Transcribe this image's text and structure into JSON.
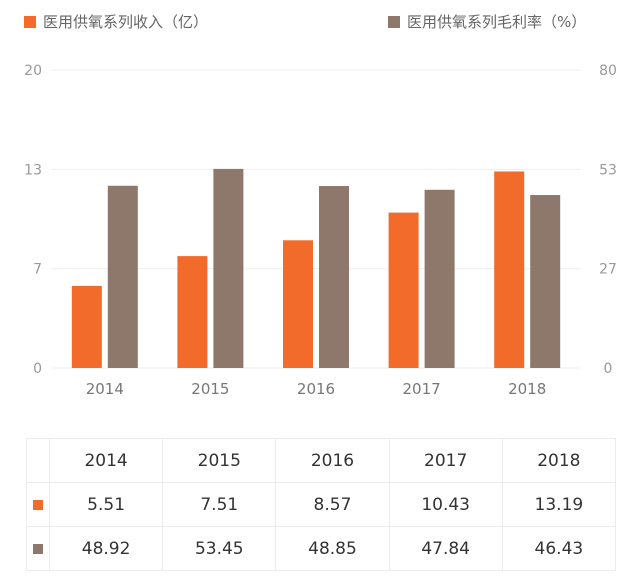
{
  "legend": {
    "income_label": "医用供氧系列收入（亿）",
    "margin_label": "医用供氧系列毛利率（%）"
  },
  "colors": {
    "income": "#F26B2A",
    "margin": "#8E776B",
    "grid": "#eeeeee"
  },
  "chart_data": {
    "type": "bar",
    "categories": [
      "2014",
      "2015",
      "2016",
      "2017",
      "2018"
    ],
    "series": [
      {
        "name": "医用供氧系列收入（亿）",
        "axis": "left",
        "values": [
          5.51,
          7.51,
          8.57,
          10.43,
          13.19
        ]
      },
      {
        "name": "医用供氧系列毛利率（%）",
        "axis": "right",
        "values": [
          48.92,
          53.45,
          48.85,
          47.84,
          46.43
        ]
      }
    ],
    "y_left": {
      "range": [
        0,
        20
      ],
      "ticks": [
        "0",
        "7",
        "13",
        "20"
      ],
      "tick_values": [
        0,
        6.667,
        13.333,
        20
      ]
    },
    "y_right": {
      "range": [
        0,
        80
      ],
      "ticks": [
        "0",
        "27",
        "53",
        "80"
      ],
      "tick_values": [
        0,
        26.667,
        53.333,
        80
      ]
    },
    "grid": true,
    "legend_position": "top"
  },
  "table": {
    "header": [
      "2014",
      "2015",
      "2016",
      "2017",
      "2018"
    ],
    "rows": [
      {
        "key": "income",
        "values": [
          "5.51",
          "7.51",
          "8.57",
          "10.43",
          "13.19"
        ]
      },
      {
        "key": "margin",
        "values": [
          "48.92",
          "53.45",
          "48.85",
          "47.84",
          "46.43"
        ]
      }
    ]
  }
}
